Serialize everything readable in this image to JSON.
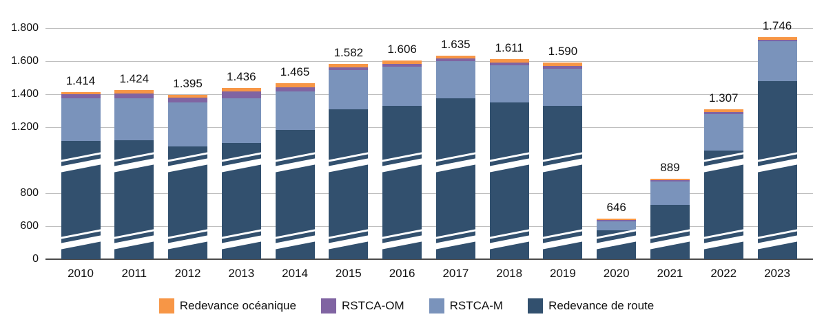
{
  "chart_data": {
    "type": "bar",
    "stacked": true,
    "title": "",
    "xlabel": "",
    "ylabel": "",
    "grid": true,
    "axis_break": true,
    "background": "#FFFFFF",
    "gridline_color": "#BFBFBF",
    "text_color": "#111111",
    "categories": [
      "2010",
      "2011",
      "2012",
      "2013",
      "2014",
      "2015",
      "2016",
      "2017",
      "2018",
      "2019",
      "2020",
      "2021",
      "2022",
      "2023"
    ],
    "series": [
      {
        "name": "Redevance de route",
        "color": "#32506E",
        "values": [
          1117,
          1120,
          1085,
          1105,
          1185,
          1310,
          1330,
          1375,
          1350,
          1330,
          520,
          730,
          1060,
          1480
        ]
      },
      {
        "name": "RSTCA-M",
        "color": "#7A93BB",
        "values": [
          260,
          255,
          265,
          270,
          230,
          235,
          235,
          225,
          225,
          225,
          110,
          140,
          220,
          240
        ]
      },
      {
        "name": "RSTCA-OM",
        "color": "#8064A2",
        "values": [
          22,
          30,
          28,
          40,
          25,
          17,
          18,
          15,
          16,
          15,
          6,
          8,
          10,
          8
        ]
      },
      {
        "name": "Redevance océanique",
        "color": "#F79646",
        "values": [
          15,
          19,
          17,
          21,
          25,
          20,
          23,
          20,
          20,
          20,
          10,
          11,
          17,
          18
        ]
      }
    ],
    "totals": [
      1414,
      1424,
      1395,
      1436,
      1465,
      1582,
      1606,
      1635,
      1611,
      1590,
      646,
      889,
      1307,
      1746
    ],
    "total_labels": [
      "1.414",
      "1.424",
      "1.395",
      "1.436",
      "1.465",
      "1.582",
      "1.606",
      "1.635",
      "1.611",
      "1.590",
      "646",
      "889",
      "1.307",
      "1.746"
    ],
    "y_ticks": [
      {
        "value": 0,
        "label": "0"
      },
      {
        "value": 600,
        "label": "600"
      },
      {
        "value": 800,
        "label": "800"
      },
      {
        "value": 1200,
        "label": "1.200"
      },
      {
        "value": 1400,
        "label": "1.400"
      },
      {
        "value": 1600,
        "label": "1.600"
      },
      {
        "value": 1800,
        "label": "1.800"
      }
    ],
    "ylim": [
      0,
      1800
    ],
    "legend_position": "bottom"
  },
  "legend": {
    "items": [
      {
        "label": "Redevance océanique",
        "color": "#F79646"
      },
      {
        "label": "RSTCA-OM",
        "color": "#8064A2"
      },
      {
        "label": "RSTCA-M",
        "color": "#7A93BB"
      },
      {
        "label": "Redevance de route",
        "color": "#32506E"
      }
    ]
  }
}
